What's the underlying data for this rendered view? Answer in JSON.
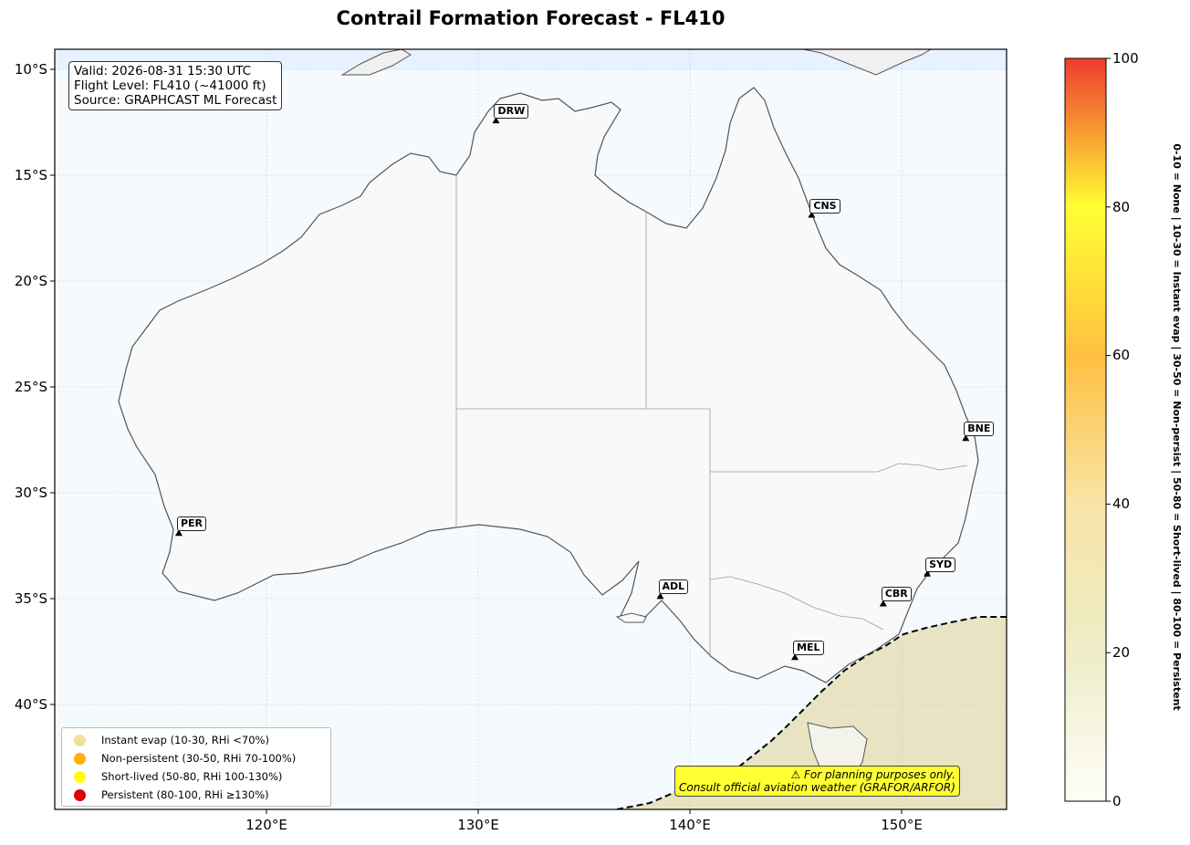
{
  "title": "Contrail Formation Forecast - FL410",
  "info": {
    "valid": "Valid: 2026-08-31 15:30 UTC",
    "flight_level": "Flight Level: FL410 (~41000 ft)",
    "source": "Source: GRAPHCAST ML Forecast"
  },
  "axes": {
    "y_labels": [
      "10°S",
      "15°S",
      "20°S",
      "25°S",
      "30°S",
      "35°S",
      "40°S"
    ],
    "x_labels": [
      "120°E",
      "130°E",
      "140°E",
      "150°E"
    ]
  },
  "cities": [
    {
      "code": "DRW",
      "lon": 130.84,
      "lat": -12.46
    },
    {
      "code": "CNS",
      "lon": 145.75,
      "lat": -16.92
    },
    {
      "code": "BNE",
      "lon": 153.03,
      "lat": -27.47
    },
    {
      "code": "PER",
      "lon": 115.86,
      "lat": -31.95
    },
    {
      "code": "SYD",
      "lon": 151.21,
      "lat": -33.87
    },
    {
      "code": "ADL",
      "lon": 138.6,
      "lat": -34.93
    },
    {
      "code": "CBR",
      "lon": 149.13,
      "lat": -35.28
    },
    {
      "code": "MEL",
      "lon": 144.96,
      "lat": -37.81
    }
  ],
  "legend": [
    {
      "label": "Instant evap (10-30, RHi <70%)",
      "color": "#f0e0a0"
    },
    {
      "label": "Non-persistent (30-50, RHi 70-100%)",
      "color": "#ffb000"
    },
    {
      "label": "Short-lived (50-80, RHi 100-130%)",
      "color": "#ffff00"
    },
    {
      "label": "Persistent (80-100, RHi ≥130%)",
      "color": "#e00000"
    }
  ],
  "warning": {
    "line1": "⚠ For planning purposes only.",
    "line2": "Consult official aviation weather (GRAFOR/ARFOR)"
  },
  "colorbar": {
    "ticks": [
      "0",
      "20",
      "40",
      "60",
      "80",
      "100"
    ],
    "side_label": "0-10 = None  |  10-30 = Instant evap  |  30-50 = Non-persist  |  50-80 = Short-lived  |  80-100 = Persistent",
    "colors": [
      "#fefef8",
      "#f4f0d0",
      "#f8e6a8",
      "#ffc850",
      "#ffff33",
      "#f03a30"
    ]
  }
}
